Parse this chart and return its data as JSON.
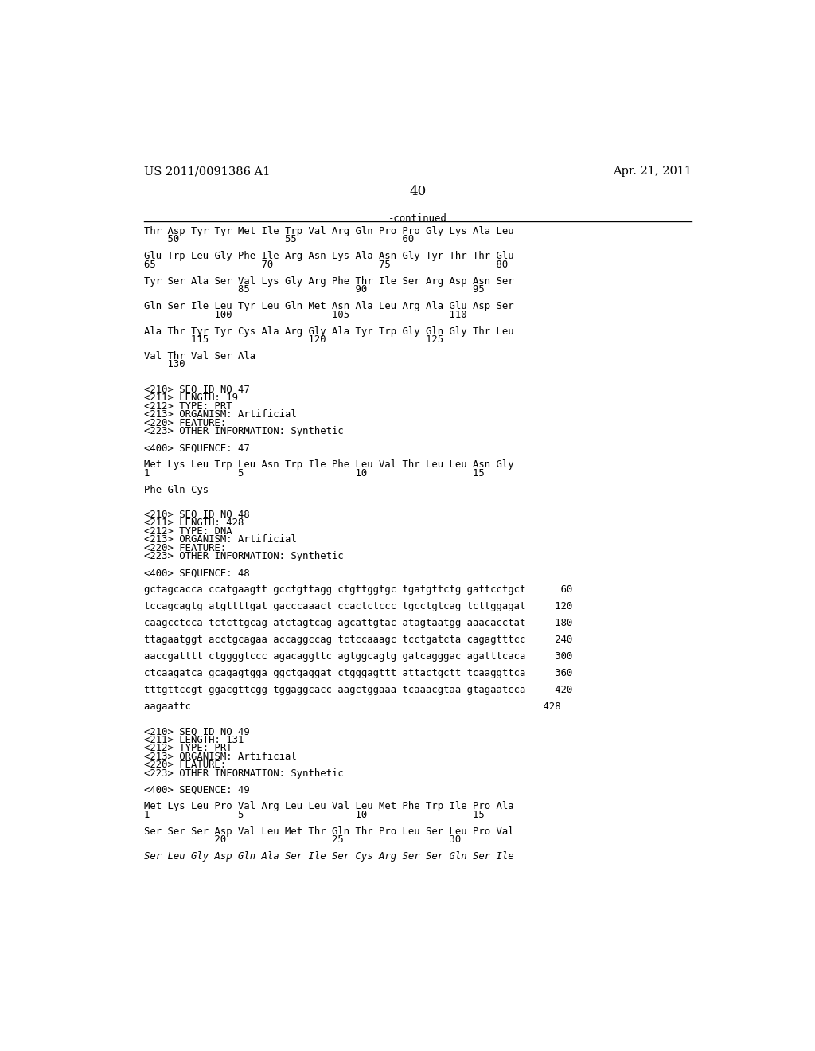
{
  "header_left": "US 2011/0091386 A1",
  "header_right": "Apr. 21, 2011",
  "page_number": "40",
  "continued_label": "-continued",
  "background_color": "#ffffff",
  "text_color": "#000000",
  "header_fontsize": 10.5,
  "page_num_fontsize": 12,
  "mono_font_size": 8.8,
  "lines": [
    {
      "text": "Thr Asp Tyr Tyr Met Ile Trp Val Arg Gln Pro Pro Gly Lys Ala Leu",
      "style": "mono"
    },
    {
      "text": "    50                  55                  60",
      "style": "mono"
    },
    {
      "text": "",
      "style": "mono"
    },
    {
      "text": "Glu Trp Leu Gly Phe Ile Arg Asn Lys Ala Asn Gly Tyr Thr Thr Glu",
      "style": "mono"
    },
    {
      "text": "65                  70                  75                  80",
      "style": "mono"
    },
    {
      "text": "",
      "style": "mono"
    },
    {
      "text": "Tyr Ser Ala Ser Val Lys Gly Arg Phe Thr Ile Ser Arg Asp Asn Ser",
      "style": "mono"
    },
    {
      "text": "                85                  90                  95",
      "style": "mono"
    },
    {
      "text": "",
      "style": "mono"
    },
    {
      "text": "Gln Ser Ile Leu Tyr Leu Gln Met Asn Ala Leu Arg Ala Glu Asp Ser",
      "style": "mono"
    },
    {
      "text": "            100                 105                 110",
      "style": "mono"
    },
    {
      "text": "",
      "style": "mono"
    },
    {
      "text": "Ala Thr Tyr Tyr Cys Ala Arg Gly Ala Tyr Trp Gly Gln Gly Thr Leu",
      "style": "mono"
    },
    {
      "text": "        115                 120                 125",
      "style": "mono"
    },
    {
      "text": "",
      "style": "mono"
    },
    {
      "text": "Val Thr Val Ser Ala",
      "style": "mono"
    },
    {
      "text": "    130",
      "style": "mono"
    },
    {
      "text": "",
      "style": "mono"
    },
    {
      "text": "",
      "style": "mono"
    },
    {
      "text": "<210> SEQ ID NO 47",
      "style": "mono"
    },
    {
      "text": "<211> LENGTH: 19",
      "style": "mono"
    },
    {
      "text": "<212> TYPE: PRT",
      "style": "mono"
    },
    {
      "text": "<213> ORGANISM: Artificial",
      "style": "mono"
    },
    {
      "text": "<220> FEATURE:",
      "style": "mono"
    },
    {
      "text": "<223> OTHER INFORMATION: Synthetic",
      "style": "mono"
    },
    {
      "text": "",
      "style": "mono"
    },
    {
      "text": "<400> SEQUENCE: 47",
      "style": "mono"
    },
    {
      "text": "",
      "style": "mono"
    },
    {
      "text": "Met Lys Leu Trp Leu Asn Trp Ile Phe Leu Val Thr Leu Leu Asn Gly",
      "style": "mono"
    },
    {
      "text": "1               5                   10                  15",
      "style": "mono"
    },
    {
      "text": "",
      "style": "mono"
    },
    {
      "text": "Phe Gln Cys",
      "style": "mono"
    },
    {
      "text": "",
      "style": "mono"
    },
    {
      "text": "",
      "style": "mono"
    },
    {
      "text": "<210> SEQ ID NO 48",
      "style": "mono"
    },
    {
      "text": "<211> LENGTH: 428",
      "style": "mono"
    },
    {
      "text": "<212> TYPE: DNA",
      "style": "mono"
    },
    {
      "text": "<213> ORGANISM: Artificial",
      "style": "mono"
    },
    {
      "text": "<220> FEATURE:",
      "style": "mono"
    },
    {
      "text": "<223> OTHER INFORMATION: Synthetic",
      "style": "mono"
    },
    {
      "text": "",
      "style": "mono"
    },
    {
      "text": "<400> SEQUENCE: 48",
      "style": "mono"
    },
    {
      "text": "",
      "style": "mono"
    },
    {
      "text": "gctagcacca ccatgaagtt gcctgttagg ctgttggtgc tgatgttctg gattcctgct      60",
      "style": "mono"
    },
    {
      "text": "",
      "style": "mono"
    },
    {
      "text": "tccagcagtg atgttttgat gacccaaact ccactctccc tgcctgtcag tcttggagat     120",
      "style": "mono"
    },
    {
      "text": "",
      "style": "mono"
    },
    {
      "text": "caagcctcca tctcttgcag atctagtcag agcattgtac atagtaatgg aaacacctat     180",
      "style": "mono"
    },
    {
      "text": "",
      "style": "mono"
    },
    {
      "text": "ttagaatggt acctgcagaa accaggccag tctccaaagc tcctgatcta cagagtttcc     240",
      "style": "mono"
    },
    {
      "text": "",
      "style": "mono"
    },
    {
      "text": "aaccgatttt ctggggtccc agacaggttc agtggcagtg gatcagggac agatttcaca     300",
      "style": "mono"
    },
    {
      "text": "",
      "style": "mono"
    },
    {
      "text": "ctcaagatca gcagagtgga ggctgaggat ctgggagttt attactgctt tcaaggttca     360",
      "style": "mono"
    },
    {
      "text": "",
      "style": "mono"
    },
    {
      "text": "tttgttccgt ggacgttcgg tggaggcacc aagctggaaa tcaaacgtaa gtagaatcca     420",
      "style": "mono"
    },
    {
      "text": "",
      "style": "mono"
    },
    {
      "text": "aagaattc                                                            428",
      "style": "mono"
    },
    {
      "text": "",
      "style": "mono"
    },
    {
      "text": "",
      "style": "mono"
    },
    {
      "text": "<210> SEQ ID NO 49",
      "style": "mono"
    },
    {
      "text": "<211> LENGTH: 131",
      "style": "mono"
    },
    {
      "text": "<212> TYPE: PRT",
      "style": "mono"
    },
    {
      "text": "<213> ORGANISM: Artificial",
      "style": "mono"
    },
    {
      "text": "<220> FEATURE:",
      "style": "mono"
    },
    {
      "text": "<223> OTHER INFORMATION: Synthetic",
      "style": "mono"
    },
    {
      "text": "",
      "style": "mono"
    },
    {
      "text": "<400> SEQUENCE: 49",
      "style": "mono"
    },
    {
      "text": "",
      "style": "mono"
    },
    {
      "text": "Met Lys Leu Pro Val Arg Leu Leu Val Leu Met Phe Trp Ile Pro Ala",
      "style": "mono"
    },
    {
      "text": "1               5                   10                  15",
      "style": "mono"
    },
    {
      "text": "",
      "style": "mono"
    },
    {
      "text": "Ser Ser Ser Asp Val Leu Met Thr Gln Thr Pro Leu Ser Leu Pro Val",
      "style": "mono"
    },
    {
      "text": "            20                  25                  30",
      "style": "mono"
    },
    {
      "text": "",
      "style": "mono"
    },
    {
      "text": "Ser Leu Gly Asp Gln Ala Ser Ile Ser Cys Arg Ser Ser Gln Ser Ile",
      "style": "italic_mono"
    }
  ]
}
